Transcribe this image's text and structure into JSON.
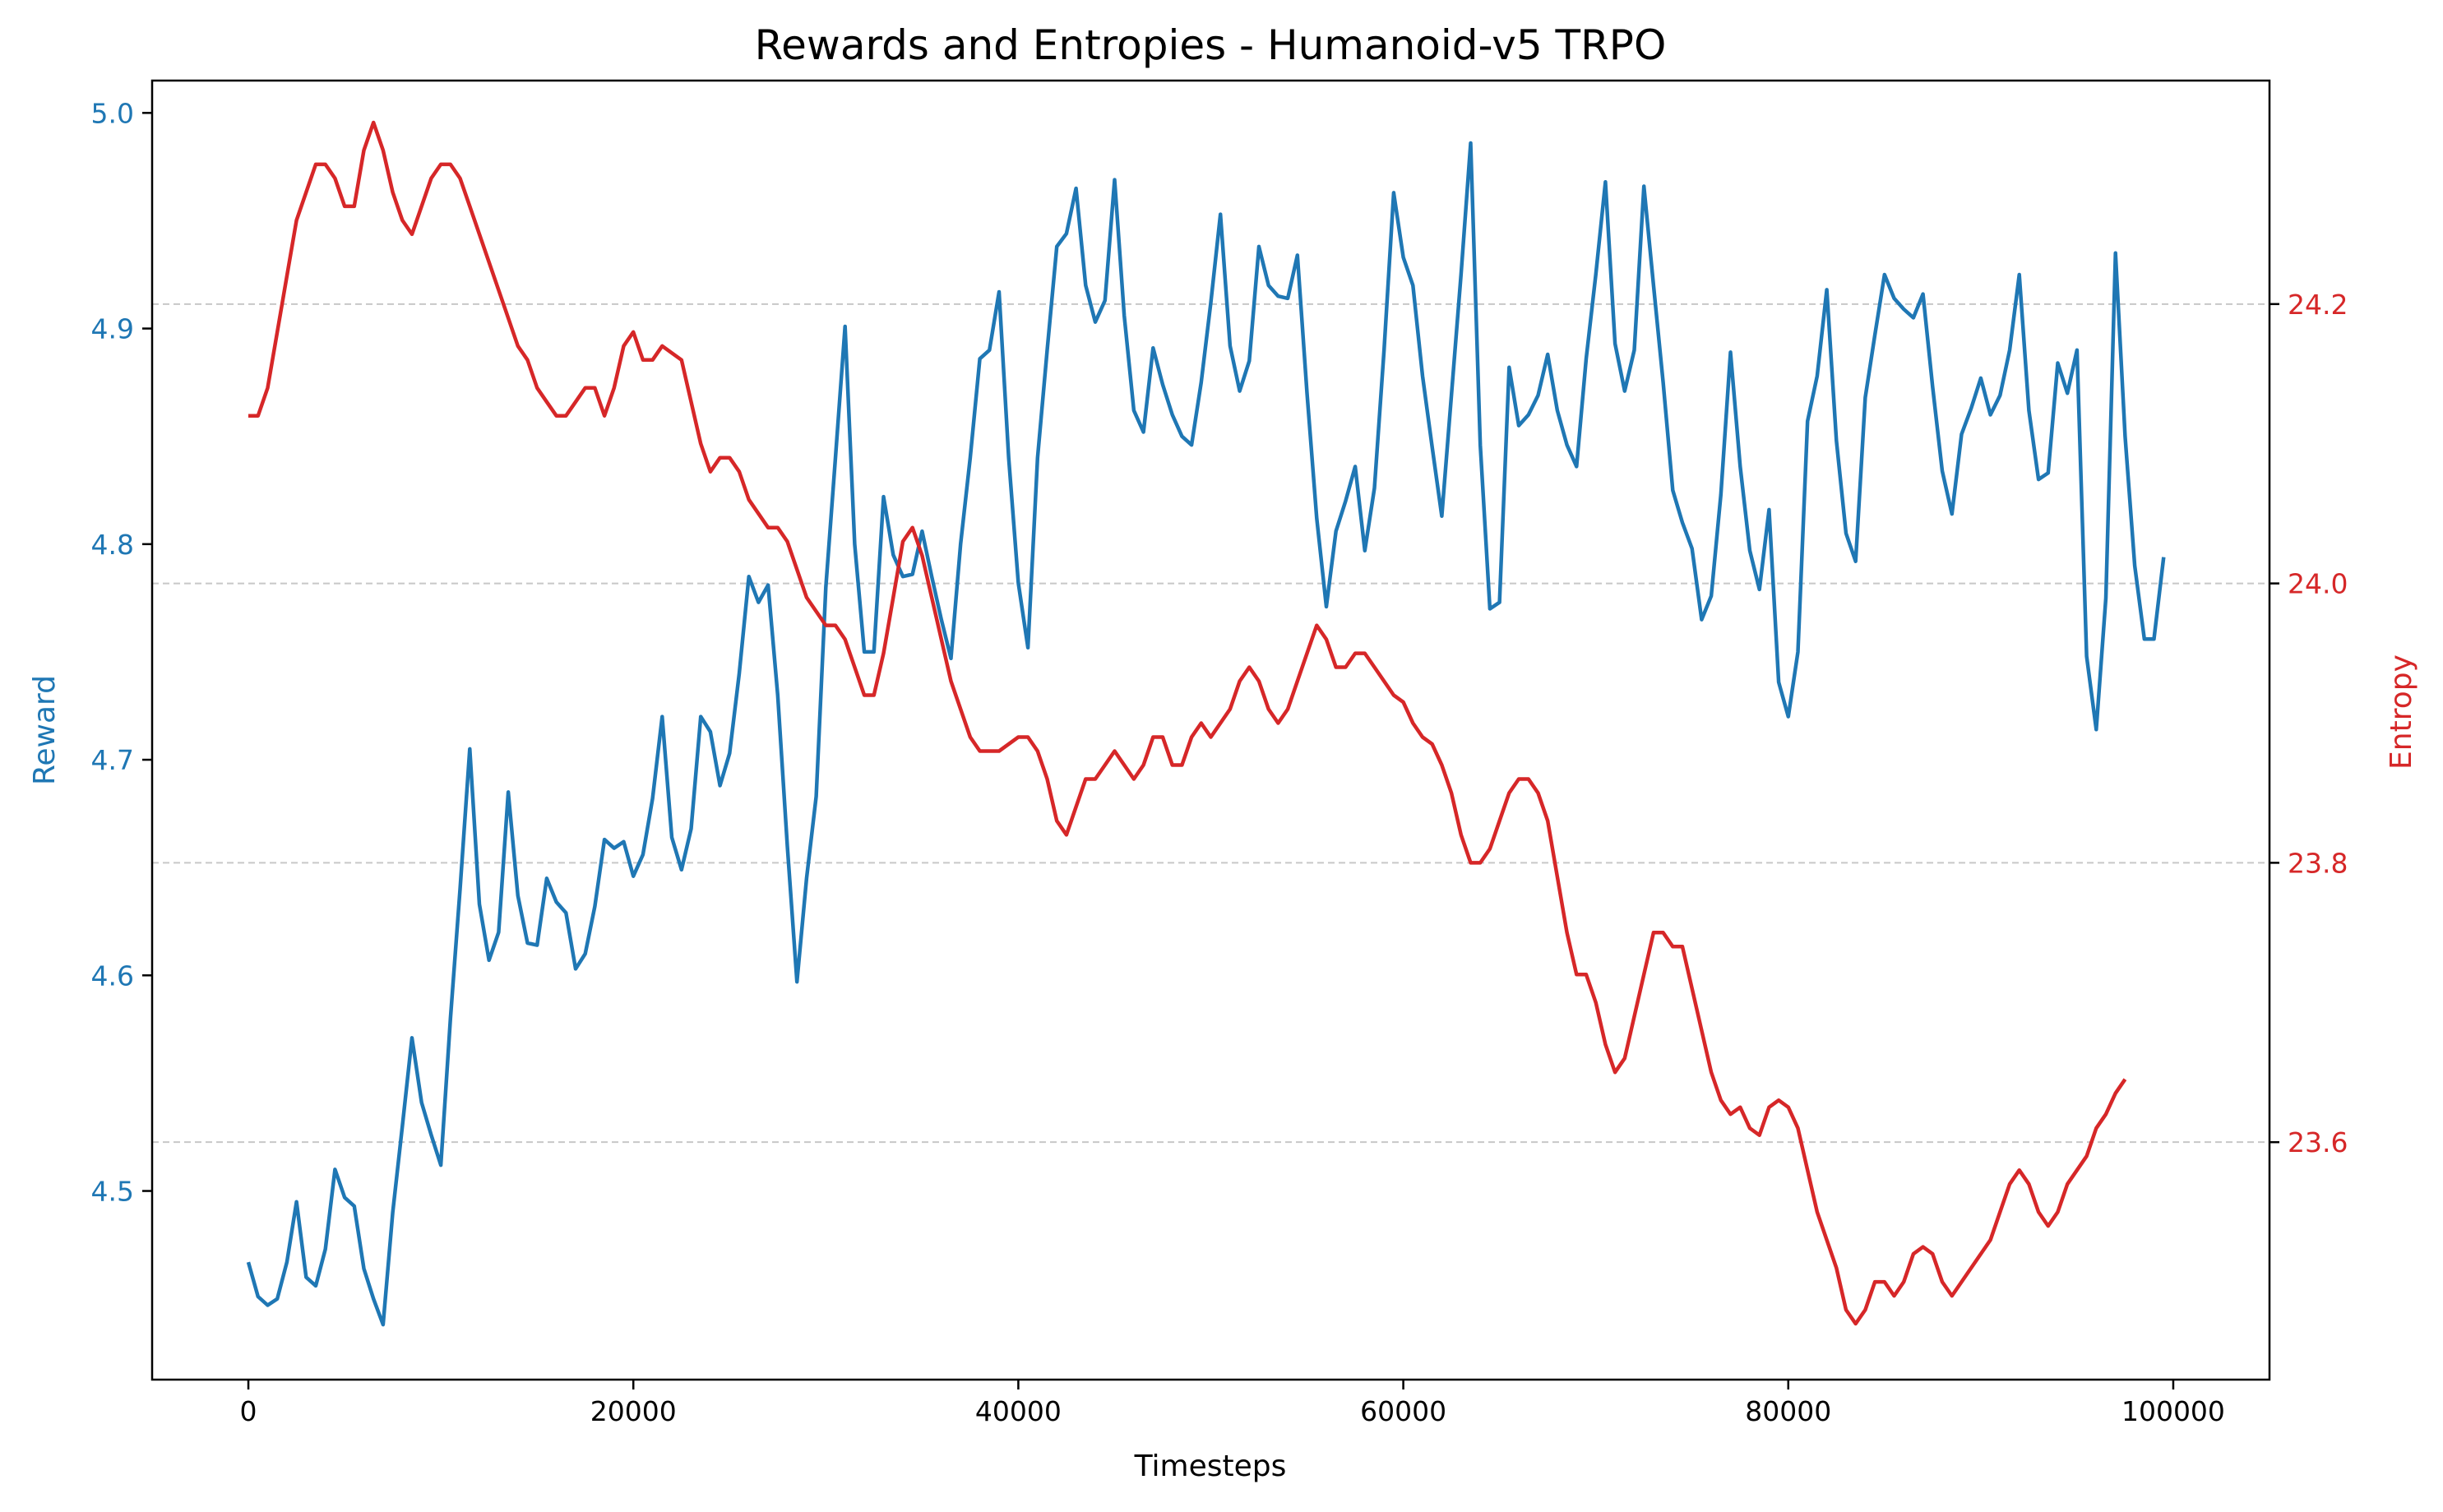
{
  "chart_data": {
    "type": "line",
    "title": "Rewards and Entropies - Humanoid-v5 TRPO",
    "xlabel": "Timesteps",
    "ylabel_left": "Reward",
    "ylabel_right": "Entropy",
    "xlim": [
      -5000,
      105000
    ],
    "ylim_left": [
      4.4125,
      5.015
    ],
    "ylim_right": [
      23.43,
      24.36
    ],
    "x_ticks": [
      0,
      20000,
      40000,
      60000,
      80000,
      100000
    ],
    "x_tick_labels": [
      "0",
      "20000",
      "40000",
      "60000",
      "80000",
      "100000"
    ],
    "y_left_ticks": [
      4.5,
      4.6,
      4.7,
      4.8,
      4.9,
      5.0
    ],
    "y_left_tick_labels": [
      "4.5",
      "4.6",
      "4.7",
      "4.8",
      "4.9",
      "5.0"
    ],
    "y_right_ticks": [
      23.6,
      23.8,
      24.0,
      24.2
    ],
    "y_right_tick_labels": [
      "23.6",
      "23.8",
      "24.0",
      "24.2"
    ],
    "grid": "horizontal dashed at right-axis ticks",
    "colors": {
      "reward": "#1f77b4",
      "entropy": "#d62728",
      "grid": "#c8c8c8",
      "axis": "#000000"
    },
    "series": [
      {
        "axis": "left",
        "x_step": 500,
        "x_start": 0,
        "values": [
          4.467,
          4.451,
          4.447,
          4.45,
          4.467,
          4.495,
          4.46,
          4.456,
          4.473,
          4.51,
          4.497,
          4.493,
          4.464,
          4.45,
          4.438,
          4.49,
          4.53,
          4.571,
          4.541,
          4.526,
          4.512,
          4.58,
          4.64,
          4.705,
          4.633,
          4.607,
          4.62,
          4.685,
          4.637,
          4.615,
          4.614,
          4.645,
          4.634,
          4.629,
          4.603,
          4.61,
          4.632,
          4.663,
          4.659,
          4.662,
          4.646,
          4.656,
          4.682,
          4.72,
          4.664,
          4.649,
          4.668,
          4.72,
          4.713,
          4.688,
          4.703,
          4.74,
          4.785,
          4.773,
          4.781,
          4.73,
          4.66,
          4.597,
          4.645,
          4.683,
          4.78,
          4.84,
          4.901,
          4.8,
          4.75,
          4.75,
          4.822,
          4.795,
          4.785,
          4.786,
          4.806,
          4.785,
          4.765,
          4.747,
          4.8,
          4.84,
          4.886,
          4.89,
          4.917,
          4.84,
          4.782,
          4.752,
          4.84,
          4.89,
          4.938,
          4.944,
          4.965,
          4.92,
          4.903,
          4.913,
          4.969,
          4.906,
          4.862,
          4.852,
          4.891,
          4.874,
          4.86,
          4.85,
          4.846,
          4.875,
          4.912,
          4.953,
          4.892,
          4.871,
          4.885,
          4.938,
          4.92,
          4.915,
          4.914,
          4.934,
          4.87,
          4.812,
          4.771,
          4.806,
          4.82,
          4.836,
          4.797,
          4.826,
          4.89,
          4.963,
          4.933,
          4.92,
          4.878,
          4.845,
          4.813,
          4.869,
          4.925,
          4.986,
          4.846,
          4.77,
          4.773,
          4.882,
          4.855,
          4.86,
          4.869,
          4.888,
          4.862,
          4.846,
          4.836,
          4.886,
          4.925,
          4.968,
          4.893,
          4.871,
          4.89,
          4.966,
          4.92,
          4.875,
          4.825,
          4.81,
          4.798,
          4.765,
          4.776,
          4.823,
          4.889,
          4.836,
          4.797,
          4.779,
          4.816,
          4.736,
          4.72,
          4.75,
          4.857,
          4.878,
          4.918,
          4.848,
          4.805,
          4.792,
          4.868,
          4.897,
          4.925,
          4.914,
          4.909,
          4.905,
          4.916,
          4.873,
          4.834,
          4.814,
          4.851,
          4.863,
          4.877,
          4.86,
          4.869,
          4.89,
          4.925,
          4.862,
          4.83,
          4.833,
          4.884,
          4.87,
          4.89,
          4.748,
          4.714,
          4.775,
          4.935,
          4.85,
          4.79,
          4.756,
          4.756,
          4.794
        ]
      },
      {
        "axis": "right",
        "x_step": 500,
        "x_start": 0,
        "values": [
          24.12,
          24.12,
          24.14,
          24.18,
          24.22,
          24.26,
          24.28,
          24.3,
          24.3,
          24.29,
          24.27,
          24.27,
          24.31,
          24.33,
          24.31,
          24.28,
          24.26,
          24.25,
          24.27,
          24.29,
          24.3,
          24.3,
          24.29,
          24.27,
          24.25,
          24.23,
          24.21,
          24.19,
          24.17,
          24.16,
          24.14,
          24.13,
          24.12,
          24.12,
          24.13,
          24.14,
          24.14,
          24.12,
          24.14,
          24.17,
          24.18,
          24.16,
          24.16,
          24.17,
          24.165,
          24.16,
          24.13,
          24.1,
          24.08,
          24.09,
          24.09,
          24.08,
          24.06,
          24.05,
          24.04,
          24.04,
          24.03,
          24.01,
          23.99,
          23.98,
          23.97,
          23.97,
          23.96,
          23.94,
          23.92,
          23.92,
          23.95,
          23.99,
          24.03,
          24.04,
          24.02,
          23.99,
          23.96,
          23.93,
          23.91,
          23.89,
          23.88,
          23.88,
          23.88,
          23.885,
          23.89,
          23.89,
          23.88,
          23.86,
          23.83,
          23.82,
          23.84,
          23.86,
          23.86,
          23.87,
          23.88,
          23.87,
          23.86,
          23.87,
          23.89,
          23.89,
          23.87,
          23.87,
          23.89,
          23.9,
          23.89,
          23.9,
          23.91,
          23.93,
          23.94,
          23.93,
          23.91,
          23.9,
          23.91,
          23.93,
          23.95,
          23.97,
          23.96,
          23.94,
          23.94,
          23.95,
          23.95,
          23.94,
          23.93,
          23.92,
          23.915,
          23.9,
          23.89,
          23.885,
          23.87,
          23.85,
          23.82,
          23.8,
          23.8,
          23.81,
          23.83,
          23.85,
          23.86,
          23.86,
          23.85,
          23.83,
          23.79,
          23.75,
          23.72,
          23.72,
          23.7,
          23.67,
          23.65,
          23.66,
          23.69,
          23.72,
          23.75,
          23.75,
          23.74,
          23.74,
          23.71,
          23.68,
          23.65,
          23.63,
          23.62,
          23.625,
          23.61,
          23.605,
          23.625,
          23.63,
          23.625,
          23.61,
          23.58,
          23.55,
          23.53,
          23.51,
          23.48,
          23.47,
          23.48,
          23.5,
          23.5,
          23.49,
          23.5,
          23.52,
          23.525,
          23.52,
          23.5,
          23.49,
          23.5,
          23.51,
          23.52,
          23.53,
          23.55,
          23.57,
          23.58,
          23.57,
          23.55,
          23.54,
          23.55,
          23.57,
          23.58,
          23.59,
          23.61,
          23.62,
          23.635,
          23.645
        ]
      }
    ]
  }
}
